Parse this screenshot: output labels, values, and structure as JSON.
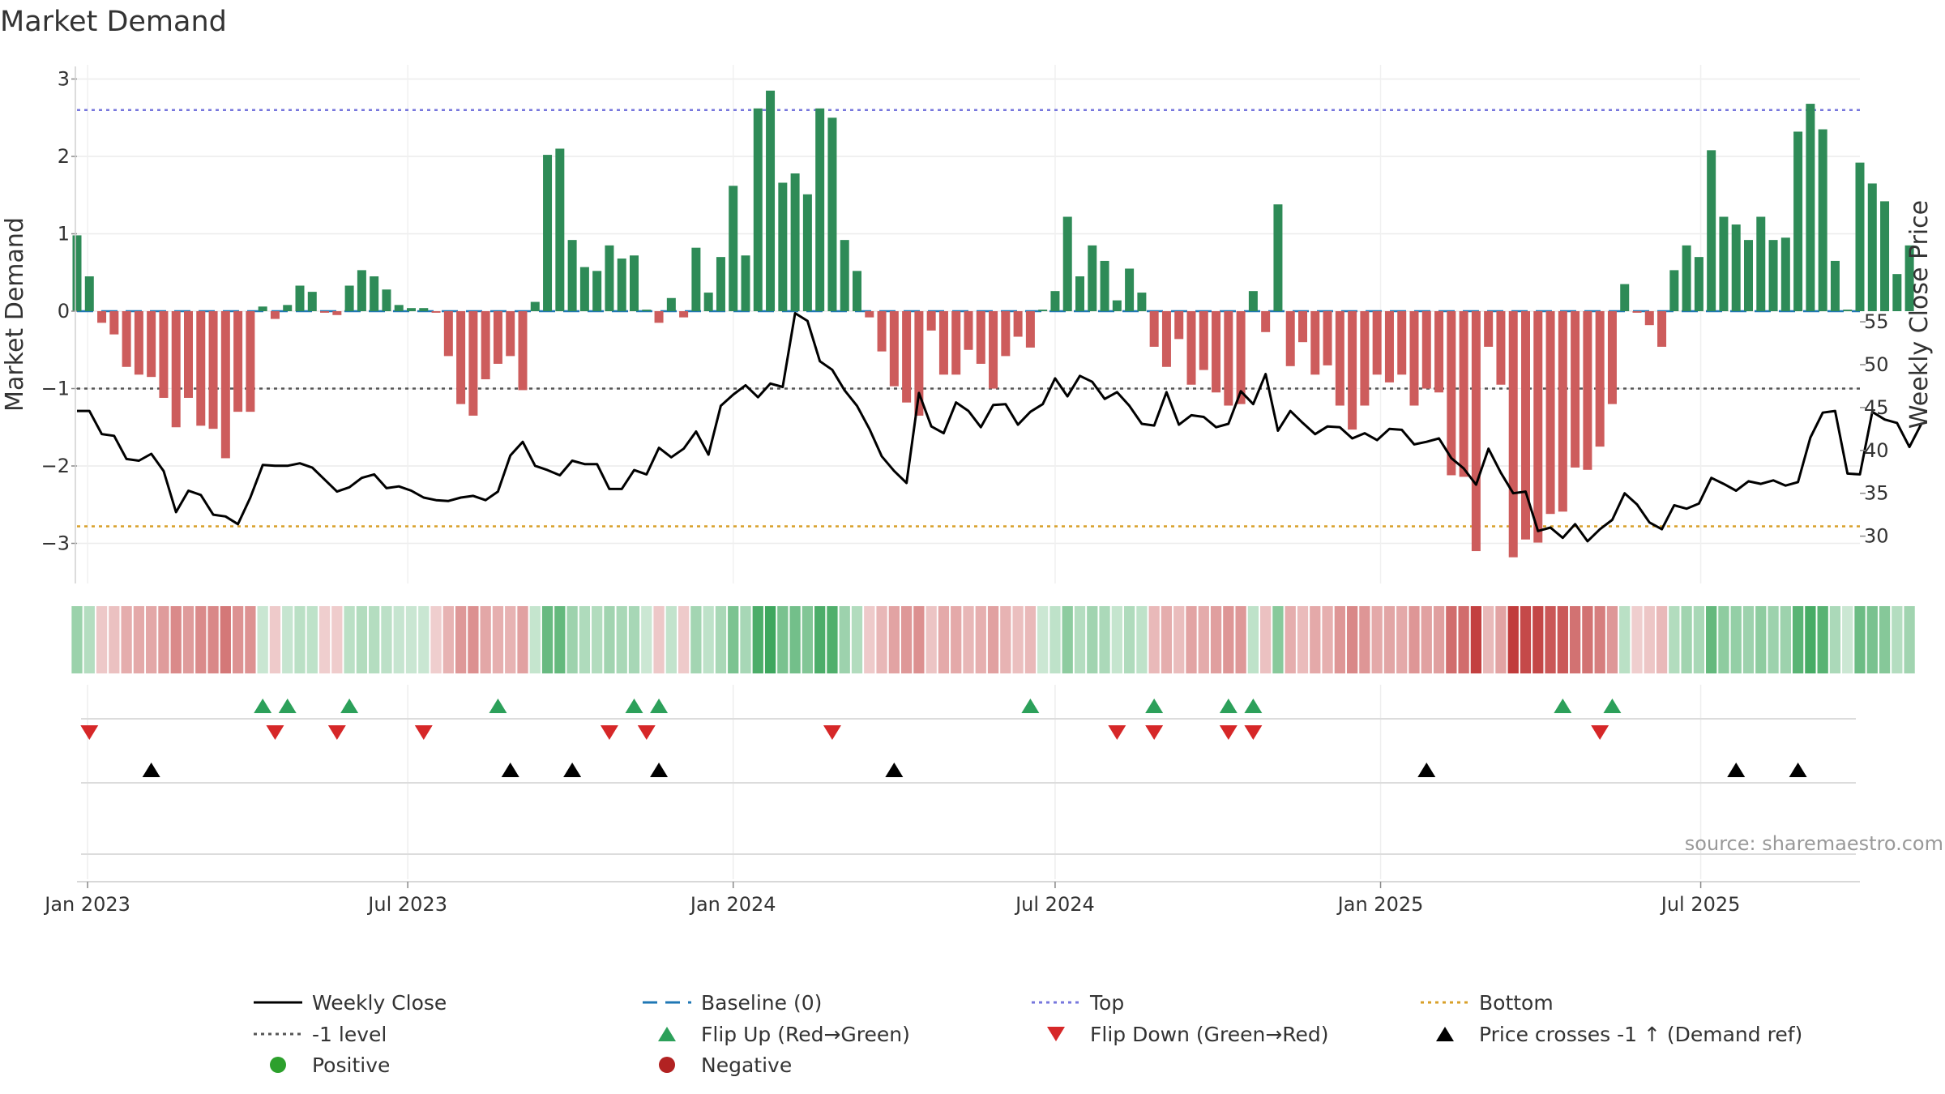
{
  "chart_data": {
    "type": "bar",
    "title": "Market Demand",
    "ylabel": "Market Demand",
    "y2label": "Weekly Close Price",
    "ylim": [
      -3.5,
      3.2
    ],
    "y2lim": [
      27.5,
      57.5
    ],
    "yticks": [
      3,
      2,
      1,
      0,
      -1,
      -2,
      -3
    ],
    "ytick_labels": [
      "3",
      "2",
      "1",
      "0",
      "−1",
      "−2",
      "−3"
    ],
    "y2ticks": [
      55,
      50,
      45,
      40,
      35,
      30
    ],
    "x_start": "2022-12-26",
    "x_end": "2025-09-29",
    "x_ticks": [
      {
        "date": "2023-01-01",
        "label": "Jan 2023"
      },
      {
        "date": "2023-07-01",
        "label": "Jul 2023"
      },
      {
        "date": "2024-01-01",
        "label": "Jan 2024"
      },
      {
        "date": "2024-07-01",
        "label": "Jul 2024"
      },
      {
        "date": "2025-01-01",
        "label": "Jan 2025"
      },
      {
        "date": "2025-07-01",
        "label": "Jul 2025"
      }
    ],
    "reference_lines": {
      "baseline": 0,
      "minus_one": -1,
      "top": 2.6,
      "bottom": -2.78
    },
    "demand": [
      0.98,
      0.45,
      -0.15,
      -0.3,
      -0.72,
      -0.82,
      -0.85,
      -1.12,
      -1.5,
      -1.12,
      -1.48,
      -1.52,
      -1.9,
      -1.3,
      -1.3,
      0.06,
      -0.1,
      0.08,
      0.33,
      0.25,
      -0.02,
      -0.05,
      0.33,
      0.53,
      0.45,
      0.28,
      0.08,
      0.04,
      0.04,
      -0.02,
      -0.58,
      -1.2,
      -1.35,
      -0.88,
      -0.68,
      -0.58,
      -1.02,
      0.12,
      2.02,
      2.1,
      0.92,
      0.57,
      0.52,
      0.85,
      0.68,
      0.72,
      0.02,
      -0.15,
      0.17,
      -0.08,
      0.82,
      0.24,
      0.7,
      1.62,
      0.72,
      2.62,
      2.85,
      1.66,
      1.78,
      1.51,
      2.62,
      2.5,
      0.92,
      0.52,
      -0.08,
      -0.52,
      -0.97,
      -1.18,
      -1.35,
      -0.25,
      -0.82,
      -0.82,
      -0.5,
      -0.68,
      -1.0,
      -0.58,
      -0.33,
      -0.47,
      0.02,
      0.26,
      1.22,
      0.45,
      0.85,
      0.65,
      0.14,
      0.55,
      0.24,
      -0.46,
      -0.72,
      -0.36,
      -0.95,
      -0.76,
      -1.05,
      -1.22,
      -1.2,
      0.26,
      -0.27,
      1.38,
      -0.71,
      -0.4,
      -0.82,
      -0.7,
      -1.22,
      -1.53,
      -1.22,
      -0.82,
      -0.92,
      -0.82,
      -1.22,
      -1.0,
      -1.05,
      -2.12,
      -2.14,
      -3.1,
      -0.46,
      -0.95,
      -3.18,
      -2.95,
      -2.99,
      -2.62,
      -2.59,
      -2.02,
      -2.05,
      -1.75,
      -1.2,
      0.35,
      -0.02,
      -0.18,
      -0.46,
      0.53,
      0.85,
      0.7,
      2.08,
      1.22,
      1.12,
      0.92,
      1.22,
      0.92,
      0.95,
      2.32,
      2.68,
      2.35,
      0.65,
      0.02,
      1.92,
      1.65,
      1.42,
      0.48,
      0.85
    ],
    "weekly_close": [
      44.6,
      44.6,
      41.9,
      41.7,
      39.0,
      38.8,
      39.6,
      37.6,
      32.8,
      35.3,
      34.8,
      32.5,
      32.3,
      31.4,
      34.5,
      38.3,
      38.2,
      38.2,
      38.5,
      38.0,
      36.6,
      35.2,
      35.7,
      36.8,
      37.2,
      35.6,
      35.8,
      35.3,
      34.5,
      34.2,
      34.1,
      34.5,
      34.7,
      34.2,
      35.2,
      39.4,
      41.0,
      38.2,
      37.7,
      37.1,
      38.8,
      38.4,
      38.4,
      35.5,
      35.5,
      37.7,
      37.2,
      40.3,
      39.2,
      40.2,
      42.2,
      39.5,
      45.2,
      46.5,
      47.6,
      46.2,
      47.8,
      47.4,
      56.0,
      55.1,
      50.4,
      49.4,
      47.0,
      45.2,
      42.5,
      39.3,
      37.6,
      36.2,
      46.7,
      42.8,
      42.0,
      45.6,
      44.6,
      42.7,
      45.3,
      45.4,
      43.0,
      44.5,
      45.4,
      48.4,
      46.3,
      48.7,
      48.0,
      46.0,
      46.8,
      45.2,
      43.1,
      42.9,
      46.8,
      43.0,
      44.1,
      43.9,
      42.7,
      43.1,
      46.9,
      45.4,
      48.9,
      42.3,
      44.6,
      43.2,
      41.9,
      42.8,
      42.7,
      41.4,
      42.0,
      41.2,
      42.5,
      42.4,
      40.7,
      41.0,
      41.4,
      39.1,
      37.9,
      36.0,
      40.2,
      37.4,
      35.0,
      35.2,
      30.6,
      31.0,
      29.8,
      31.4,
      29.4,
      30.8,
      31.9,
      35.0,
      33.7,
      31.6,
      30.8,
      33.6,
      33.2,
      33.8,
      36.8,
      36.1,
      35.3,
      36.4,
      36.1,
      36.5,
      35.9,
      36.3,
      41.5,
      44.4,
      44.6,
      37.3,
      37.2,
      44.5,
      43.6,
      43.2,
      40.4,
      43.2
    ],
    "heat_sign": "positive values green, negative values red, intensity by magnitude",
    "flip_up_weeks": [
      15,
      17,
      22,
      34,
      45,
      47,
      77,
      87,
      93,
      95,
      120,
      124
    ],
    "flip_down_weeks": [
      1,
      16,
      21,
      28,
      43,
      46,
      61,
      84,
      87,
      93,
      95,
      123
    ],
    "price_cross_weeks": [
      6,
      35,
      40,
      47,
      66,
      109,
      134,
      139
    ],
    "source_text": "source: sharemaestro.com",
    "colors": {
      "positive": "#2e8b57",
      "negative": "#cd5c5c",
      "price_line": "#000000",
      "baseline": "#1f77b4",
      "minus_one": "#555555",
      "top": "#7777dd",
      "bottom": "#d8a02a",
      "flip_up": "#2ca05a",
      "flip_down": "#d62728",
      "cross": "#000000",
      "legend_positive": "#2ca02c",
      "legend_negative": "#b22222"
    },
    "legend": [
      {
        "label": "Weekly Close",
        "kind": "line",
        "color": "#000000"
      },
      {
        "label": "Baseline (0)",
        "kind": "dash",
        "color": "#1f77b4"
      },
      {
        "label": "Top",
        "kind": "dot",
        "color": "#7777dd"
      },
      {
        "label": "Bottom",
        "kind": "dot",
        "color": "#d8a02a"
      },
      {
        "label": "-1 level",
        "kind": "dot",
        "color": "#555555"
      },
      {
        "label": "Flip Up (Red→Green)",
        "kind": "tri-up",
        "color": "#2ca05a"
      },
      {
        "label": "Flip Down (Green→Red)",
        "kind": "tri-down",
        "color": "#d62728"
      },
      {
        "label": "Price crosses -1 ↑ (Demand ref)",
        "kind": "tri-up",
        "color": "#000000"
      },
      {
        "label": "Positive",
        "kind": "circle",
        "color": "#2ca02c"
      },
      {
        "label": "Negative",
        "kind": "circle",
        "color": "#b22222"
      }
    ]
  }
}
